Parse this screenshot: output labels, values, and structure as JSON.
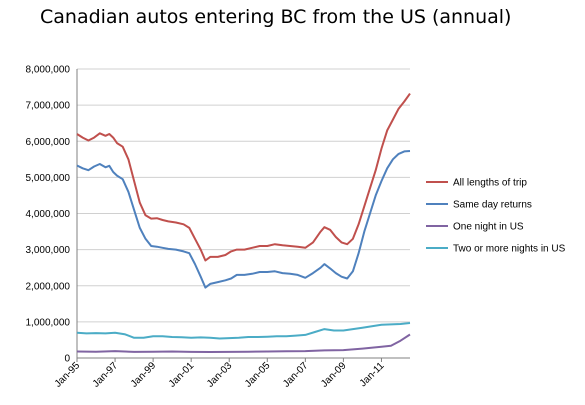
{
  "chart_data": {
    "type": "line",
    "title": "Canadian autos entering BC from the US (annual)",
    "xlabel": "",
    "ylabel": "",
    "ylim": [
      0,
      8000000
    ],
    "yticks": [
      0,
      1000000,
      2000000,
      3000000,
      4000000,
      5000000,
      6000000,
      7000000,
      8000000
    ],
    "ytick_labels": [
      "0",
      "1,000,000",
      "2,000,000",
      "3,000,000",
      "4,000,000",
      "5,000,000",
      "6,000,000",
      "7,000,000",
      "8,000,000"
    ],
    "xticks": [
      "Jan-95",
      "Jan-97",
      "Jan-99",
      "Jan-01",
      "Jan-03",
      "Jan-05",
      "Jan-07",
      "Jan-09",
      "Jan-11"
    ],
    "xlim": [
      1995.0,
      2012.5
    ],
    "grid": "horizontal",
    "legend_position": "right",
    "series": [
      {
        "name": "All lengths of trip",
        "color": "#c0504d",
        "points": [
          [
            1995.0,
            6200000
          ],
          [
            1995.3,
            6100000
          ],
          [
            1995.6,
            6020000
          ],
          [
            1995.9,
            6100000
          ],
          [
            1996.2,
            6220000
          ],
          [
            1996.5,
            6150000
          ],
          [
            1996.7,
            6200000
          ],
          [
            1996.9,
            6100000
          ],
          [
            1997.1,
            5950000
          ],
          [
            1997.4,
            5850000
          ],
          [
            1997.7,
            5500000
          ],
          [
            1998.0,
            4900000
          ],
          [
            1998.3,
            4300000
          ],
          [
            1998.6,
            3950000
          ],
          [
            1998.9,
            3860000
          ],
          [
            1999.2,
            3870000
          ],
          [
            1999.5,
            3820000
          ],
          [
            1999.8,
            3780000
          ],
          [
            2000.2,
            3750000
          ],
          [
            2000.6,
            3700000
          ],
          [
            2000.9,
            3600000
          ],
          [
            2001.2,
            3300000
          ],
          [
            2001.5,
            3000000
          ],
          [
            2001.75,
            2700000
          ],
          [
            2002.0,
            2800000
          ],
          [
            2002.4,
            2800000
          ],
          [
            2002.8,
            2850000
          ],
          [
            2003.1,
            2950000
          ],
          [
            2003.4,
            3000000
          ],
          [
            2003.8,
            3000000
          ],
          [
            2004.2,
            3050000
          ],
          [
            2004.6,
            3100000
          ],
          [
            2005.0,
            3100000
          ],
          [
            2005.4,
            3150000
          ],
          [
            2005.8,
            3120000
          ],
          [
            2006.2,
            3100000
          ],
          [
            2006.6,
            3080000
          ],
          [
            2007.0,
            3050000
          ],
          [
            2007.4,
            3200000
          ],
          [
            2007.8,
            3500000
          ],
          [
            2008.0,
            3620000
          ],
          [
            2008.3,
            3550000
          ],
          [
            2008.6,
            3350000
          ],
          [
            2008.9,
            3200000
          ],
          [
            2009.2,
            3150000
          ],
          [
            2009.5,
            3300000
          ],
          [
            2009.8,
            3700000
          ],
          [
            2010.1,
            4200000
          ],
          [
            2010.4,
            4700000
          ],
          [
            2010.7,
            5200000
          ],
          [
            2011.0,
            5800000
          ],
          [
            2011.3,
            6300000
          ],
          [
            2011.6,
            6600000
          ],
          [
            2011.9,
            6900000
          ],
          [
            2012.2,
            7100000
          ],
          [
            2012.5,
            7320000
          ]
        ]
      },
      {
        "name": "Same day returns",
        "color": "#4f81bd",
        "points": [
          [
            1995.0,
            5330000
          ],
          [
            1995.3,
            5250000
          ],
          [
            1995.6,
            5200000
          ],
          [
            1995.9,
            5300000
          ],
          [
            1996.2,
            5370000
          ],
          [
            1996.5,
            5280000
          ],
          [
            1996.7,
            5320000
          ],
          [
            1996.9,
            5150000
          ],
          [
            1997.1,
            5050000
          ],
          [
            1997.4,
            4950000
          ],
          [
            1997.7,
            4600000
          ],
          [
            1998.0,
            4100000
          ],
          [
            1998.3,
            3600000
          ],
          [
            1998.6,
            3300000
          ],
          [
            1998.9,
            3100000
          ],
          [
            1999.2,
            3080000
          ],
          [
            1999.5,
            3050000
          ],
          [
            1999.8,
            3020000
          ],
          [
            2000.2,
            3000000
          ],
          [
            2000.6,
            2950000
          ],
          [
            2000.9,
            2900000
          ],
          [
            2001.2,
            2600000
          ],
          [
            2001.5,
            2250000
          ],
          [
            2001.75,
            1950000
          ],
          [
            2002.0,
            2050000
          ],
          [
            2002.4,
            2100000
          ],
          [
            2002.8,
            2150000
          ],
          [
            2003.1,
            2200000
          ],
          [
            2003.4,
            2300000
          ],
          [
            2003.8,
            2300000
          ],
          [
            2004.2,
            2330000
          ],
          [
            2004.6,
            2380000
          ],
          [
            2005.0,
            2380000
          ],
          [
            2005.4,
            2400000
          ],
          [
            2005.8,
            2350000
          ],
          [
            2006.2,
            2330000
          ],
          [
            2006.6,
            2300000
          ],
          [
            2007.0,
            2220000
          ],
          [
            2007.4,
            2350000
          ],
          [
            2007.8,
            2500000
          ],
          [
            2008.0,
            2600000
          ],
          [
            2008.3,
            2480000
          ],
          [
            2008.6,
            2350000
          ],
          [
            2008.9,
            2250000
          ],
          [
            2009.2,
            2200000
          ],
          [
            2009.5,
            2400000
          ],
          [
            2009.8,
            2900000
          ],
          [
            2010.1,
            3500000
          ],
          [
            2010.4,
            4000000
          ],
          [
            2010.7,
            4500000
          ],
          [
            2011.0,
            4900000
          ],
          [
            2011.3,
            5250000
          ],
          [
            2011.6,
            5500000
          ],
          [
            2011.9,
            5650000
          ],
          [
            2012.2,
            5720000
          ],
          [
            2012.5,
            5730000
          ]
        ]
      },
      {
        "name": "One night in US",
        "color": "#8064a2",
        "points": [
          [
            1995.0,
            180000
          ],
          [
            1996.0,
            175000
          ],
          [
            1997.0,
            190000
          ],
          [
            1998.0,
            170000
          ],
          [
            1999.0,
            175000
          ],
          [
            2000.0,
            180000
          ],
          [
            2001.0,
            170000
          ],
          [
            2002.0,
            165000
          ],
          [
            2003.0,
            170000
          ],
          [
            2004.0,
            175000
          ],
          [
            2005.0,
            180000
          ],
          [
            2006.0,
            185000
          ],
          [
            2007.0,
            190000
          ],
          [
            2008.0,
            210000
          ],
          [
            2009.0,
            220000
          ],
          [
            2010.0,
            260000
          ],
          [
            2011.0,
            310000
          ],
          [
            2011.5,
            340000
          ],
          [
            2012.0,
            480000
          ],
          [
            2012.5,
            650000
          ]
        ]
      },
      {
        "name": "Two or more nights in US",
        "color": "#4bacc6",
        "points": [
          [
            1995.0,
            700000
          ],
          [
            1995.5,
            680000
          ],
          [
            1996.0,
            690000
          ],
          [
            1996.5,
            680000
          ],
          [
            1997.0,
            700000
          ],
          [
            1997.5,
            660000
          ],
          [
            1998.0,
            560000
          ],
          [
            1998.5,
            560000
          ],
          [
            1999.0,
            600000
          ],
          [
            1999.5,
            600000
          ],
          [
            2000.0,
            580000
          ],
          [
            2000.5,
            575000
          ],
          [
            2001.0,
            560000
          ],
          [
            2001.5,
            570000
          ],
          [
            2002.0,
            560000
          ],
          [
            2002.5,
            540000
          ],
          [
            2003.0,
            550000
          ],
          [
            2003.5,
            560000
          ],
          [
            2004.0,
            580000
          ],
          [
            2004.5,
            580000
          ],
          [
            2005.0,
            590000
          ],
          [
            2005.5,
            600000
          ],
          [
            2006.0,
            600000
          ],
          [
            2006.5,
            620000
          ],
          [
            2007.0,
            640000
          ],
          [
            2007.5,
            720000
          ],
          [
            2008.0,
            800000
          ],
          [
            2008.5,
            760000
          ],
          [
            2009.0,
            760000
          ],
          [
            2009.5,
            800000
          ],
          [
            2010.0,
            840000
          ],
          [
            2010.5,
            880000
          ],
          [
            2011.0,
            920000
          ],
          [
            2011.5,
            930000
          ],
          [
            2012.0,
            940000
          ],
          [
            2012.5,
            970000
          ]
        ]
      }
    ]
  }
}
